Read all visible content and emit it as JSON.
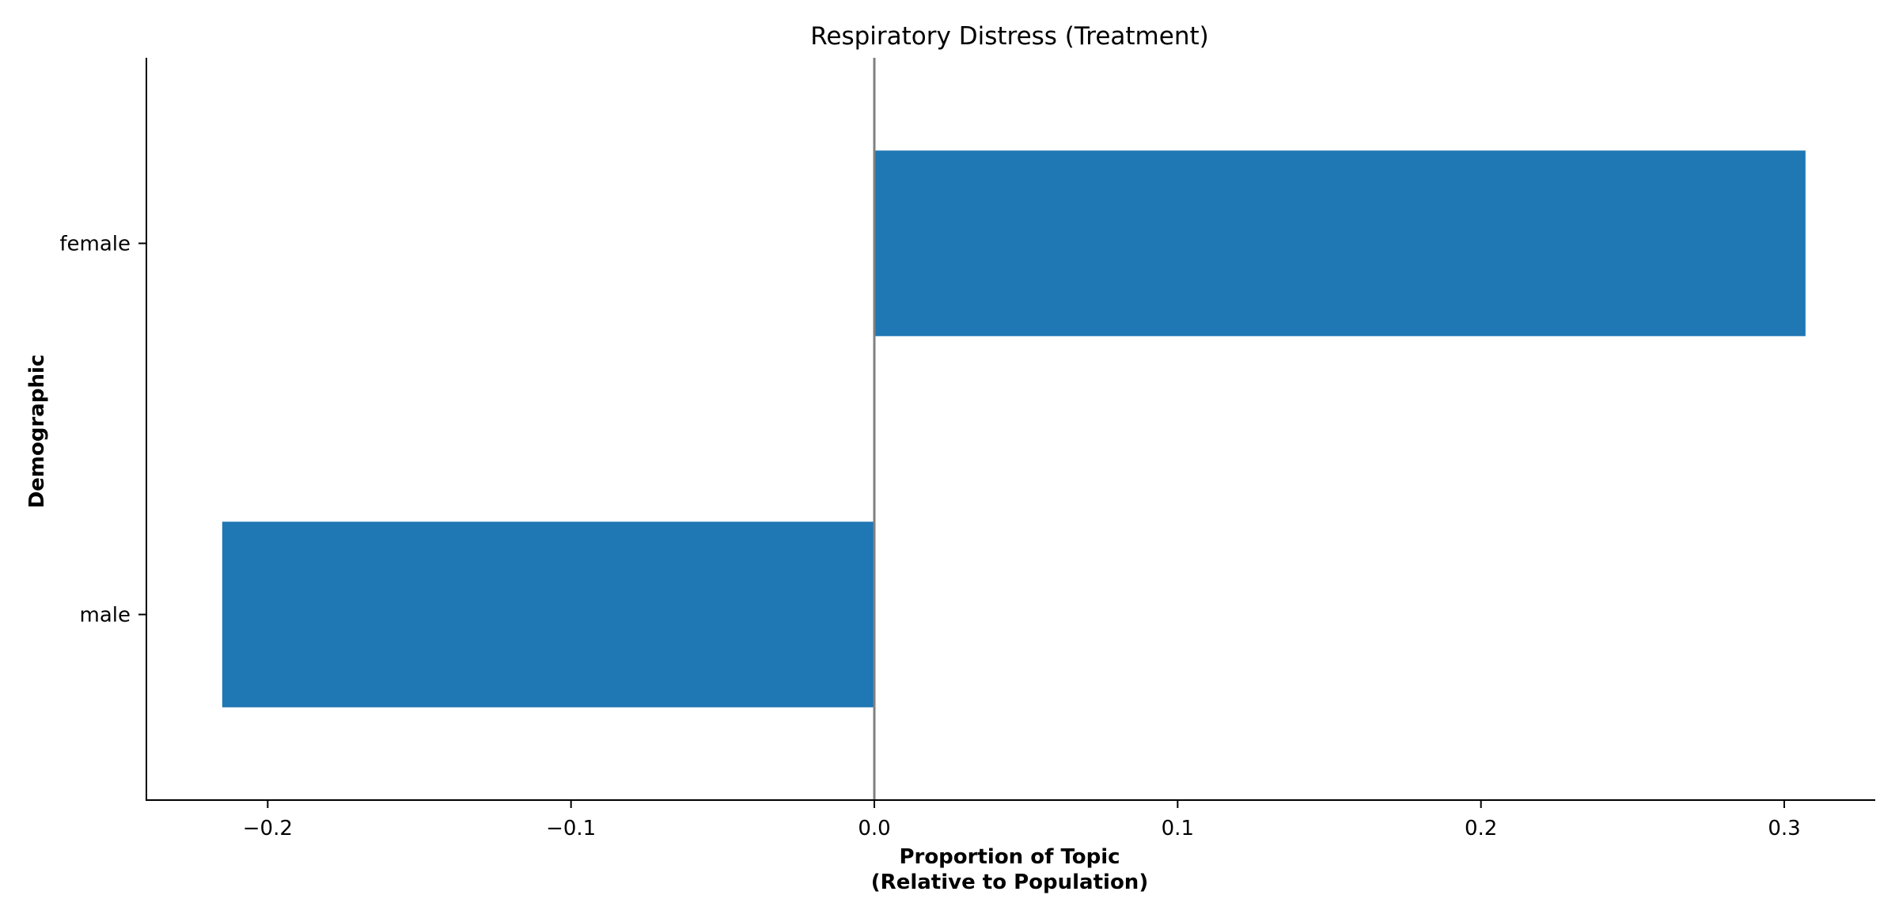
{
  "chart_data": {
    "type": "bar",
    "orientation": "horizontal",
    "title": "Respiratory Distress (Treatment)",
    "xlabel_lines": [
      "Proportion of Topic",
      "(Relative to Population)"
    ],
    "ylabel": "Demographic",
    "categories": [
      "female",
      "male"
    ],
    "values": [
      0.307,
      -0.215
    ],
    "xlim": [
      -0.24,
      0.33
    ],
    "xticks": [
      {
        "value": -0.2,
        "label": "−0.2"
      },
      {
        "value": -0.1,
        "label": "−0.1"
      },
      {
        "value": 0.0,
        "label": "0.0"
      },
      {
        "value": 0.1,
        "label": "0.1"
      },
      {
        "value": 0.2,
        "label": "0.2"
      },
      {
        "value": 0.3,
        "label": "0.3"
      }
    ],
    "bar_color": "#1f77b4",
    "zero_line_color": "#808080",
    "grid": false,
    "legend": "none"
  }
}
